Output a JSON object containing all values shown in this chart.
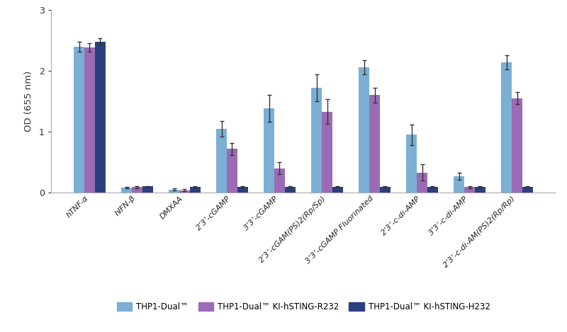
{
  "categories": [
    "hTNF-α",
    "hIFN-β",
    "DMXAA",
    "2’3’-cGAMP",
    "3’3’-cGAMP",
    "2’3’-cGAM(PS)2(Rp/Sp)",
    "3’3’-cGAMP Fluorinated",
    "2’3’-c-di-AMP",
    "3’3’-c-di-AMP",
    "2’3’-c-di-AM(PS)2(Rp/Rp)"
  ],
  "series": {
    "THP1-Dual™": {
      "values": [
        2.4,
        0.08,
        0.05,
        1.05,
        1.38,
        1.72,
        2.06,
        0.95,
        0.27,
        2.14
      ],
      "errors": [
        0.08,
        0.015,
        0.015,
        0.13,
        0.22,
        0.22,
        0.12,
        0.17,
        0.06,
        0.12
      ],
      "color": "#7BAFD4"
    },
    "THP1-Dual™ KI-hSTING-R232": {
      "values": [
        2.38,
        0.09,
        0.04,
        0.72,
        0.4,
        1.33,
        1.6,
        0.33,
        0.09,
        1.55
      ],
      "errors": [
        0.07,
        0.015,
        0.015,
        0.1,
        0.1,
        0.2,
        0.12,
        0.13,
        0.02,
        0.1
      ],
      "color": "#9B6BB5"
    },
    "THP1-Dual™ KI-hSTING-H232": {
      "values": [
        2.48,
        0.1,
        0.09,
        0.09,
        0.09,
        0.09,
        0.09,
        0.09,
        0.09,
        0.09
      ],
      "errors": [
        0.05,
        0.01,
        0.01,
        0.01,
        0.01,
        0.01,
        0.01,
        0.01,
        0.01,
        0.01
      ],
      "color": "#2B3F7E"
    }
  },
  "ylabel": "OD (655 nm)",
  "ylim": [
    0,
    3.0
  ],
  "yticks": [
    0,
    1,
    2,
    3
  ],
  "bar_width": 0.22,
  "background_color": "#ffffff",
  "legend_labels": [
    "THP1-Dual™",
    "THP1-Dual™ KI-hSTING-R232",
    "THP1-Dual™ KI-hSTING-H232"
  ]
}
